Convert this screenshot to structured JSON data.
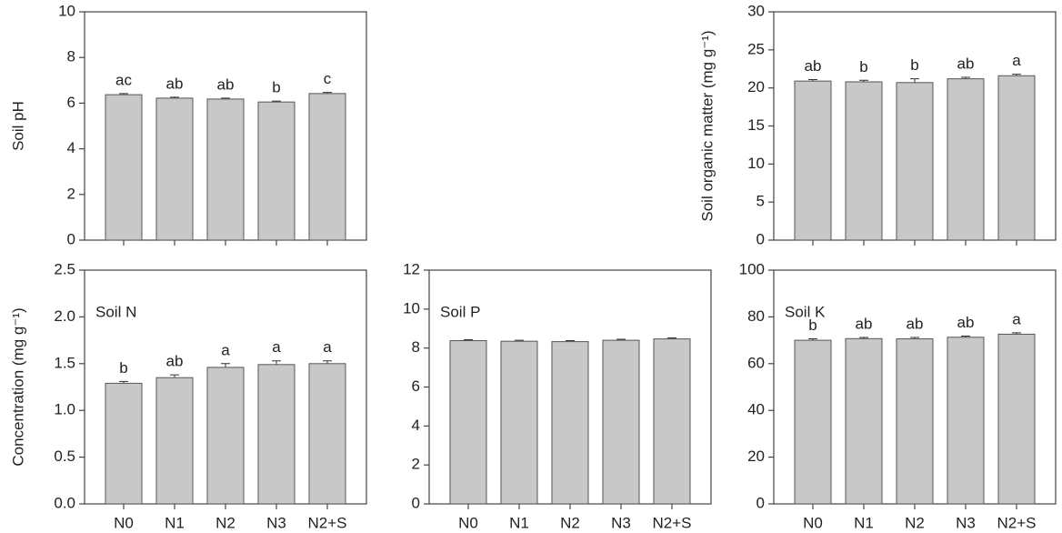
{
  "chart_data": [
    {
      "type": "bar",
      "ylabel": "Soil pH",
      "values": [
        6.37,
        6.22,
        6.18,
        6.05,
        6.42
      ],
      "errors": [
        0.05,
        0.04,
        0.04,
        0.04,
        0.05
      ],
      "letters": [
        "ac",
        "ab",
        "ab",
        "b",
        "c"
      ],
      "color": "#c8c8c8",
      "ylim": [
        0,
        10
      ],
      "yticks": [
        0,
        2,
        4,
        6,
        8,
        10
      ]
    },
    {
      "type": "bar",
      "ylabel": "Soil organic matter (mg g⁻¹)",
      "values": [
        20.9,
        20.8,
        20.7,
        21.2,
        21.6
      ],
      "errors": [
        0.2,
        0.2,
        0.5,
        0.2,
        0.2
      ],
      "letters": [
        "ab",
        "b",
        "b",
        "ab",
        "a"
      ],
      "color": "#c8c8c8",
      "ylim": [
        0,
        30
      ],
      "yticks": [
        0,
        5,
        10,
        15,
        20,
        25,
        30
      ]
    },
    {
      "type": "bar",
      "ylabel": "Concentration (mg g⁻¹)",
      "title": "Soil N",
      "categories": [
        "N0",
        "N1",
        "N2",
        "N3",
        "N2+S"
      ],
      "values": [
        1.29,
        1.35,
        1.46,
        1.49,
        1.5
      ],
      "errors": [
        0.02,
        0.03,
        0.04,
        0.04,
        0.03
      ],
      "letters": [
        "b",
        "ab",
        "a",
        "a",
        "a"
      ],
      "color": "#c8c8c8",
      "ylim": [
        0,
        2.5
      ],
      "yticks": [
        {
          "value": 0,
          "label": "0.0"
        },
        0.5,
        {
          "value": 1,
          "label": "1.0"
        },
        1.5,
        {
          "value": 2,
          "label": "2.0"
        },
        2.5
      ]
    },
    {
      "type": "bar",
      "title": "Soil P",
      "categories": [
        "N0",
        "N1",
        "N2",
        "N3",
        "N2+S"
      ],
      "values": [
        8.38,
        8.35,
        8.33,
        8.4,
        8.47
      ],
      "errors": [
        0.05,
        0.05,
        0.05,
        0.05,
        0.05
      ],
      "color": "#c8c8c8",
      "ylim": [
        0,
        12
      ],
      "yticks": [
        0,
        2,
        4,
        6,
        8,
        10,
        12
      ]
    },
    {
      "type": "bar",
      "title": "Soil K",
      "categories": [
        "N0",
        "N1",
        "N2",
        "N3",
        "N2+S"
      ],
      "values": [
        70.0,
        70.7,
        70.6,
        71.3,
        72.6
      ],
      "errors": [
        0.6,
        0.5,
        0.6,
        0.5,
        0.6
      ],
      "letters": [
        "b",
        "ab",
        "ab",
        "ab",
        "a"
      ],
      "color": "#c8c8c8",
      "ylim": [
        0,
        100
      ],
      "yticks": [
        0,
        20,
        40,
        60,
        80,
        100
      ]
    }
  ]
}
